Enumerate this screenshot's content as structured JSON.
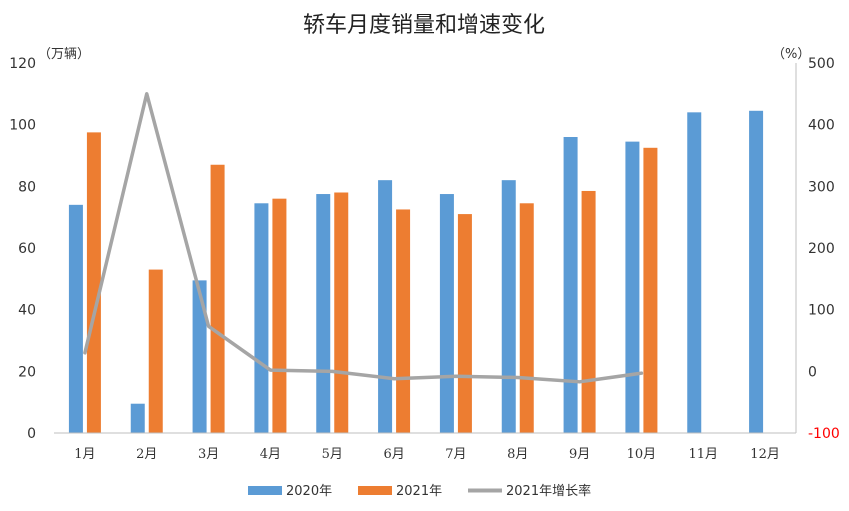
{
  "chart_data": {
    "type": "bar",
    "title": "轿车月度销量和增速变化",
    "left_unit": "（万辆）",
    "right_unit": "（%）",
    "categories": [
      "1月",
      "2月",
      "3月",
      "4月",
      "5月",
      "6月",
      "7月",
      "8月",
      "9月",
      "10月",
      "11月",
      "12月"
    ],
    "series": [
      {
        "name": "2020年",
        "type": "bar",
        "axis": "left",
        "color": "#5B9BD5",
        "values": [
          74,
          9.5,
          49.5,
          74.5,
          77.5,
          82,
          77.5,
          82,
          96,
          94.5,
          104,
          104.5
        ]
      },
      {
        "name": "2021年",
        "type": "bar",
        "axis": "left",
        "color": "#ED7D31",
        "values": [
          97.5,
          53,
          87,
          76,
          78,
          72.5,
          71,
          74.5,
          78.5,
          92.5,
          null,
          null
        ]
      },
      {
        "name": "2021年增长率",
        "type": "line",
        "axis": "right",
        "color": "#A5A5A5",
        "values": [
          30,
          450,
          73,
          2,
          0,
          -12,
          -8,
          -10,
          -17,
          -3,
          null,
          null
        ]
      }
    ],
    "y_left": {
      "min": 0,
      "max": 120,
      "ticks": [
        "0",
        "20",
        "40",
        "60",
        "80",
        "100",
        "120"
      ]
    },
    "y_right": {
      "min": -100,
      "max": 500,
      "ticks": [
        "-100",
        "0",
        "100",
        "200",
        "300",
        "400",
        "500"
      ],
      "negative_color": "#FF0000"
    },
    "legend_position": "bottom",
    "grid": false
  }
}
